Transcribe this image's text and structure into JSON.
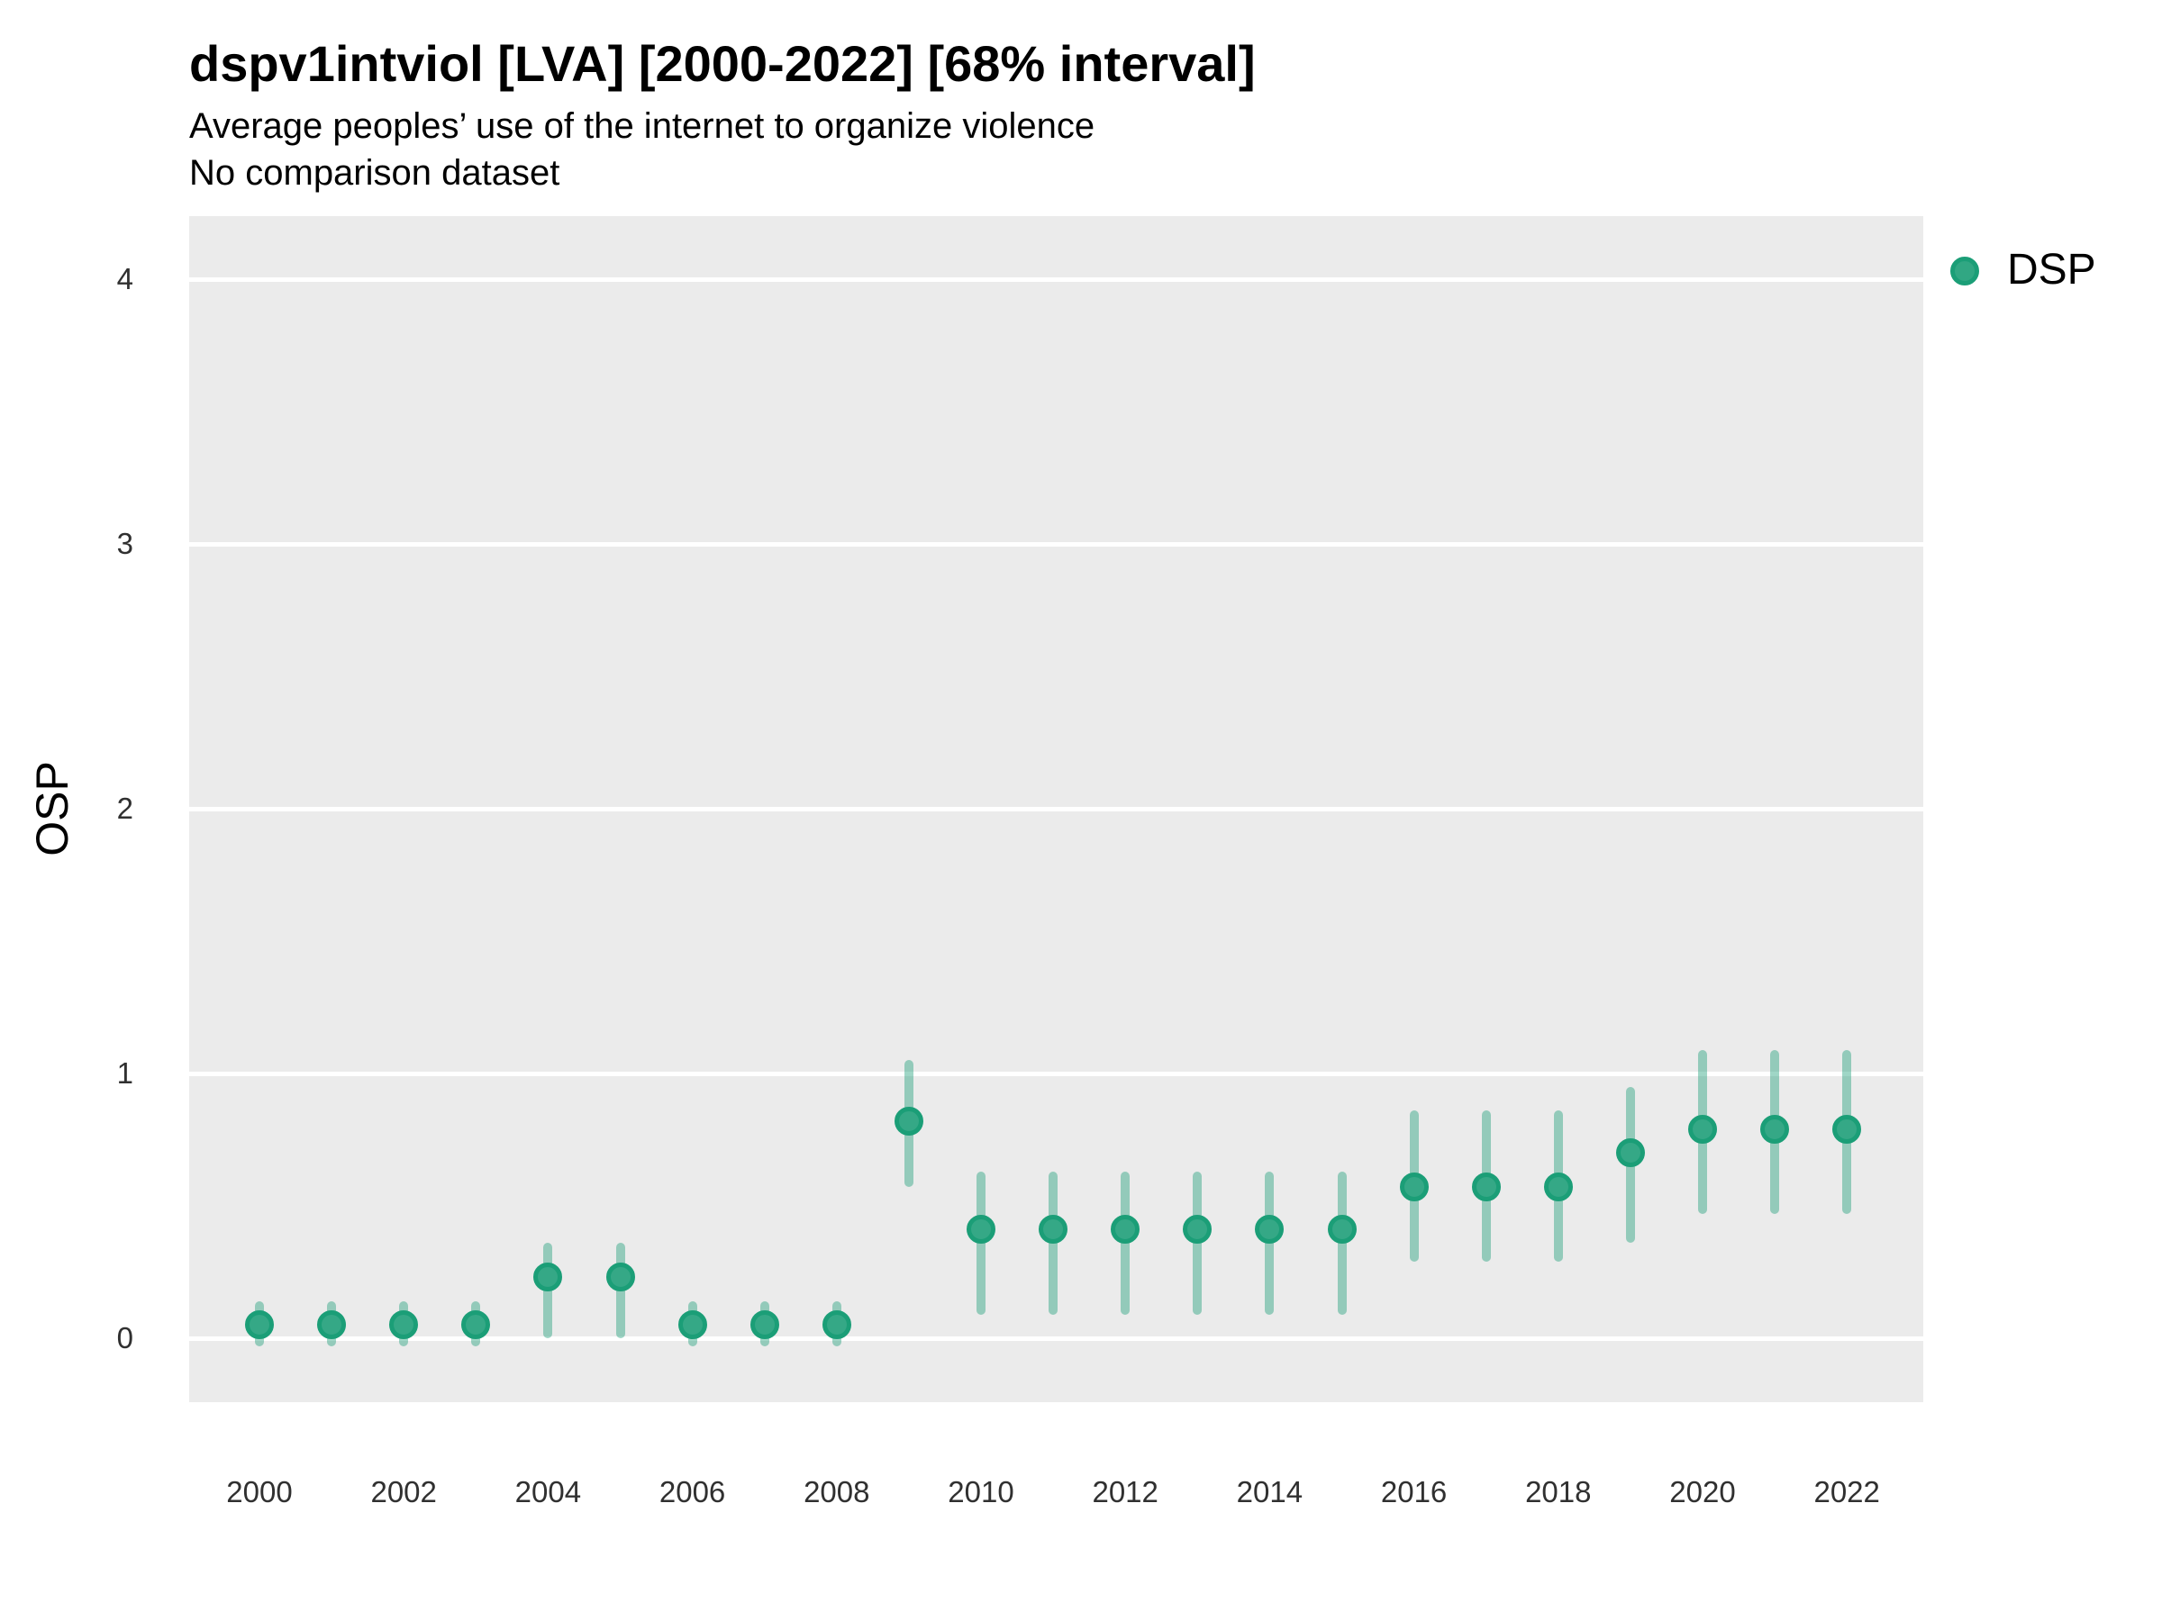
{
  "header": {
    "title": "dspv1intviol [LVA] [2000-2022] [68% interval]",
    "subtitle": "Average peoples’ use of the internet to organize violence",
    "note": "No comparison dataset"
  },
  "chart_data": {
    "type": "pointrange-scatter",
    "title": "dspv1intviol [LVA] [2000-2022] [68% interval]",
    "subtitle": "Average peoples’ use of the internet to organize violence",
    "note": "No comparison dataset",
    "xlabel": "",
    "ylabel": "OSP",
    "ylim": [
      0,
      4
    ],
    "yticks": [
      0,
      1,
      2,
      3,
      4
    ],
    "xticks": [
      2000,
      2002,
      2004,
      2006,
      2008,
      2010,
      2012,
      2014,
      2016,
      2018,
      2020,
      2022
    ],
    "grid": "horizontal major gridlines only, white on gray panel",
    "legend_position": "right-top",
    "interval_level": "68%",
    "series": [
      {
        "name": "DSP",
        "points": [
          {
            "year": 2000,
            "est": 0.05,
            "lo": -0.03,
            "hi": 0.14
          },
          {
            "year": 2001,
            "est": 0.05,
            "lo": -0.03,
            "hi": 0.14
          },
          {
            "year": 2002,
            "est": 0.05,
            "lo": -0.03,
            "hi": 0.14
          },
          {
            "year": 2003,
            "est": 0.05,
            "lo": -0.03,
            "hi": 0.14
          },
          {
            "year": 2004,
            "est": 0.23,
            "lo": 0.0,
            "hi": 0.36
          },
          {
            "year": 2005,
            "est": 0.23,
            "lo": 0.0,
            "hi": 0.36
          },
          {
            "year": 2006,
            "est": 0.05,
            "lo": -0.03,
            "hi": 0.14
          },
          {
            "year": 2007,
            "est": 0.05,
            "lo": -0.03,
            "hi": 0.14
          },
          {
            "year": 2008,
            "est": 0.05,
            "lo": -0.03,
            "hi": 0.14
          },
          {
            "year": 2009,
            "est": 0.82,
            "lo": 0.57,
            "hi": 1.05
          },
          {
            "year": 2010,
            "est": 0.41,
            "lo": 0.09,
            "hi": 0.63
          },
          {
            "year": 2011,
            "est": 0.41,
            "lo": 0.09,
            "hi": 0.63
          },
          {
            "year": 2012,
            "est": 0.41,
            "lo": 0.09,
            "hi": 0.63
          },
          {
            "year": 2013,
            "est": 0.41,
            "lo": 0.09,
            "hi": 0.63
          },
          {
            "year": 2014,
            "est": 0.41,
            "lo": 0.09,
            "hi": 0.63
          },
          {
            "year": 2015,
            "est": 0.41,
            "lo": 0.09,
            "hi": 0.63
          },
          {
            "year": 2016,
            "est": 0.57,
            "lo": 0.29,
            "hi": 0.86
          },
          {
            "year": 2017,
            "est": 0.57,
            "lo": 0.29,
            "hi": 0.86
          },
          {
            "year": 2018,
            "est": 0.57,
            "lo": 0.29,
            "hi": 0.86
          },
          {
            "year": 2019,
            "est": 0.7,
            "lo": 0.36,
            "hi": 0.95
          },
          {
            "year": 2020,
            "est": 0.79,
            "lo": 0.47,
            "hi": 1.09
          },
          {
            "year": 2021,
            "est": 0.79,
            "lo": 0.47,
            "hi": 1.09
          },
          {
            "year": 2022,
            "est": 0.79,
            "lo": 0.47,
            "hi": 1.09
          }
        ]
      }
    ]
  },
  "colors": {
    "point_fill": "#35a886",
    "point_stroke": "#1b9e77",
    "interval_line": "rgba(27,158,119,0.42)",
    "panel_background": "#ebebeb",
    "gridline": "#ffffff",
    "text": "#000000",
    "tick_text": "#303030"
  }
}
